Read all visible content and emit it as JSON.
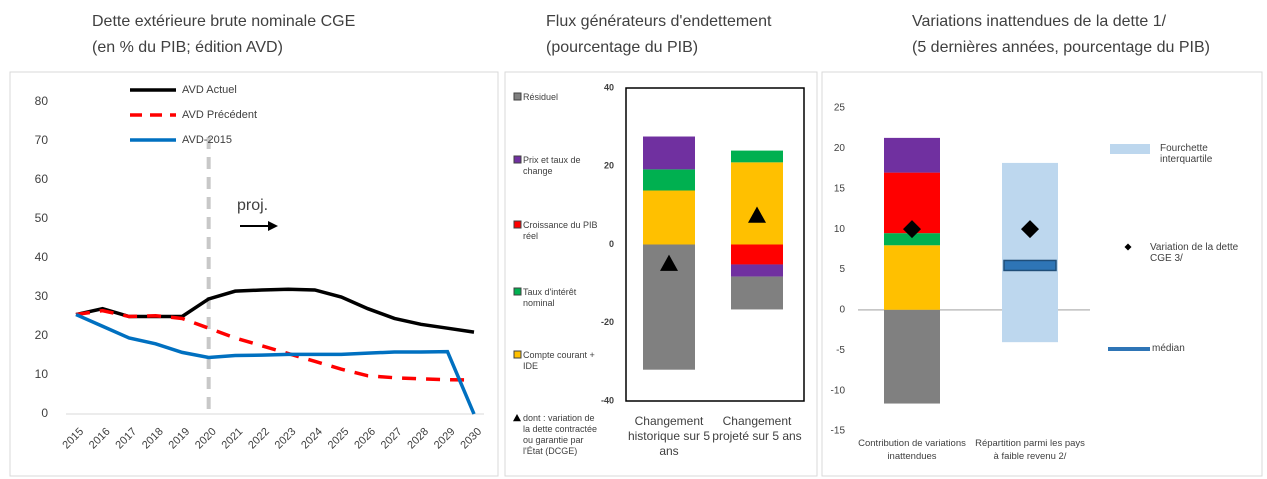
{
  "chart_data": [
    {
      "type": "line",
      "title": "Dette extérieure brute nominale CGE",
      "subtitle": "(en % du PIB; édition AVD)",
      "annotation": "proj.",
      "projection_start": "2020",
      "categories": [
        "2015",
        "2016",
        "2017",
        "2018",
        "2019",
        "2020",
        "2021",
        "2022",
        "2023",
        "2024",
        "2025",
        "2026",
        "2027",
        "2028",
        "2029",
        "2030"
      ],
      "ylim": [
        0,
        80
      ],
      "yticks": [
        0,
        10,
        20,
        30,
        40,
        50,
        60,
        70,
        80
      ],
      "series": [
        {
          "name": "AVD Actuel",
          "color": "#000000",
          "dashed": false,
          "values": [
            25.5,
            27,
            25,
            25,
            25,
            29.5,
            31.5,
            31.8,
            32,
            31.8,
            30,
            27,
            24.5,
            23,
            22,
            21
          ]
        },
        {
          "name": "AVD Précédent",
          "color": "#ff0000",
          "dashed": true,
          "values": [
            25.5,
            26.5,
            25,
            25.2,
            24.5,
            22,
            19.5,
            17.5,
            15.5,
            13.5,
            11.5,
            9.8,
            9.3,
            9,
            8.8,
            8.7
          ]
        },
        {
          "name": "AVD-2015",
          "color": "#0070c0",
          "dashed": false,
          "values": [
            25.5,
            22.5,
            19.5,
            18,
            15.8,
            14.5,
            15,
            15.1,
            15.3,
            15.3,
            15.3,
            15.6,
            15.9,
            15.9,
            16,
            0
          ]
        }
      ]
    },
    {
      "type": "stacked_bar",
      "title": "Flux générateurs d'endettement",
      "subtitle": "(pourcentage du PIB)",
      "categories": [
        "Changement historique sur 5 ans",
        "Changement projeté sur 5 ans"
      ],
      "ylim": [
        -40,
        40
      ],
      "yticks": [
        -40,
        -20,
        0,
        20,
        40
      ],
      "series": [
        {
          "name": "Résiduel",
          "color": "#808080",
          "values": [
            -32,
            -8.4
          ]
        },
        {
          "name": "Prix et taux de change",
          "color": "#7030a0",
          "values": [
            8.4,
            -3.1
          ]
        },
        {
          "name": "Croissance du PIB réel",
          "color": "#ff0000",
          "values": [
            0,
            -5.1
          ]
        },
        {
          "name": "Taux d'intérêt nominal",
          "color": "#00b050",
          "values": [
            5.4,
            3
          ]
        },
        {
          "name": "Compte courant + IDE",
          "color": "#ffc000",
          "values": [
            13.8,
            21
          ]
        }
      ],
      "points": {
        "name": "dont : variation de la dette contractée ou garantie par l'État (DCGE)",
        "color": "#000000",
        "marker": "triangle",
        "values": [
          -4.9,
          7.4
        ]
      }
    },
    {
      "type": "stacked_bar",
      "title": "Variations inattendues de la dette 1/",
      "subtitle": "(5 dernières années, pourcentage du PIB)",
      "categories": [
        "Contribution de variations inattendues",
        "Répartition parmi les pays à faible revenu 2/"
      ],
      "ylim": [
        -15,
        25
      ],
      "yticks": [
        -15,
        -10,
        -5,
        0,
        5,
        10,
        15,
        20,
        25
      ],
      "series": [
        {
          "color": "#808080",
          "values": [
            -11.6,
            null
          ]
        },
        {
          "color": "#7030a0",
          "values": [
            4.3,
            null
          ]
        },
        {
          "color": "#ff0000",
          "values": [
            7.5,
            null
          ]
        },
        {
          "color": "#00b050",
          "values": [
            1.5,
            null
          ]
        },
        {
          "color": "#ffc000",
          "values": [
            8,
            null
          ]
        }
      ],
      "range": {
        "name": "Fourchette interquartile",
        "color": "#bdd7ee",
        "low": [
          null,
          -4
        ],
        "high": [
          null,
          18.2
        ]
      },
      "median": {
        "name": "médian",
        "color": "#2e75b6",
        "values": [
          null,
          5.5
        ]
      },
      "points": {
        "name": "Variation de la dette CGE 3/",
        "color": "#000000",
        "marker": "diamond",
        "values": [
          10,
          10
        ]
      }
    }
  ]
}
